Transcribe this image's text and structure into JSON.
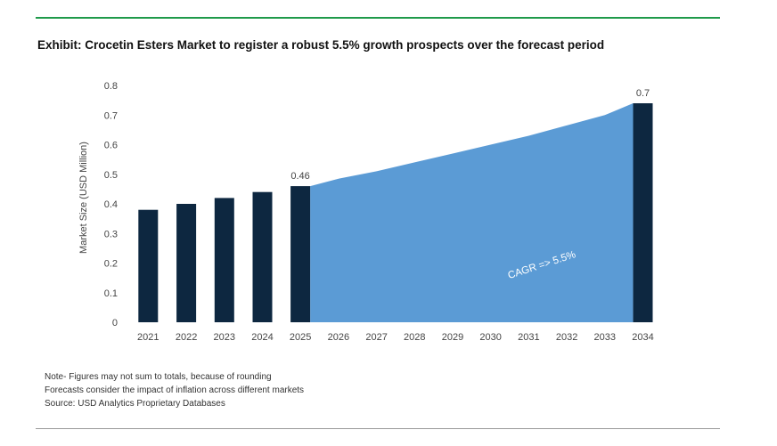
{
  "title": "Exhibit: Crocetin Esters Market to register a robust 5.5% growth prospects over the forecast period",
  "notes": [
    "Note- Figures may not sum to totals, because of rounding",
    "Forecasts consider the impact of inflation across different markets",
    "Source: USD Analytics Proprietary Databases"
  ],
  "colors": {
    "bar": "#0d2740",
    "area": "#5b9bd5",
    "rule": "#1f9a4a"
  },
  "chart_data": {
    "type": "bar",
    "categories": [
      "2021",
      "2022",
      "2023",
      "2024",
      "2025",
      "2026",
      "2027",
      "2028",
      "2029",
      "2030",
      "2031",
      "2032",
      "2033",
      "2034"
    ],
    "bar_values": [
      0.38,
      0.4,
      0.42,
      0.44,
      0.46,
      null,
      null,
      null,
      null,
      null,
      null,
      null,
      null,
      0.74
    ],
    "area_series": {
      "categories": [
        "2025",
        "2026",
        "2027",
        "2028",
        "2029",
        "2030",
        "2031",
        "2032",
        "2033",
        "2034"
      ],
      "values": [
        0.46,
        0.485,
        0.51,
        0.54,
        0.57,
        0.6,
        0.63,
        0.665,
        0.7,
        0.74
      ]
    },
    "data_labels": [
      {
        "category": "2025",
        "text": "0.46"
      },
      {
        "category": "2034",
        "text": "0.7"
      }
    ],
    "annotation": "CAGR =>  5.5%",
    "ylabel": "Market Size (USD Million)",
    "xlabel": "",
    "ylim": [
      0,
      0.8
    ],
    "yticks": [
      "0",
      "0.1",
      "0.2",
      "0.3",
      "0.4",
      "0.5",
      "0.6",
      "0.7",
      "0.8"
    ],
    "grid": false
  }
}
